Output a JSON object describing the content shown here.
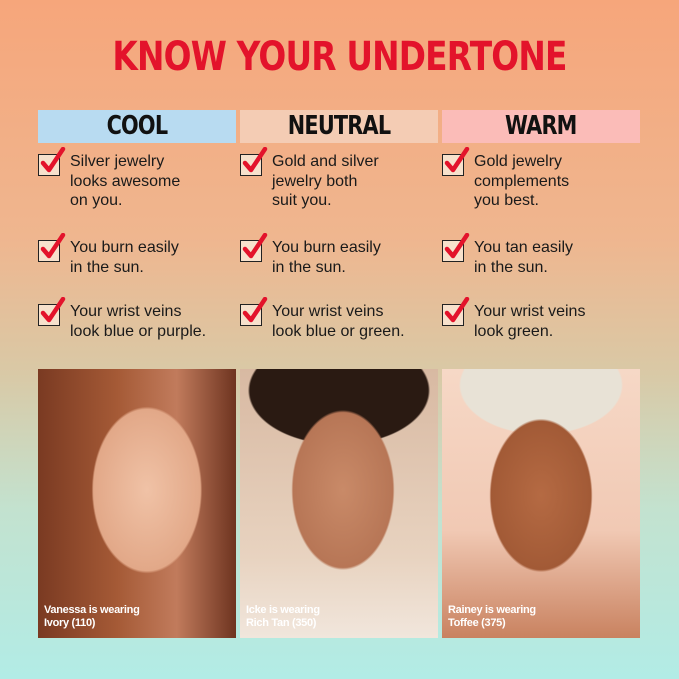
{
  "title": "KNOW YOUR UNDERTONE",
  "colors": {
    "title": "#e3132b",
    "cool": "#b8dbf1",
    "neutral": "#f4ccb4",
    "warm": "#fbbcb8",
    "check": "#e3132b"
  },
  "columns": [
    {
      "label": "COOL",
      "items": [
        "Silver jewelry\nlooks awesome\non you.",
        "You burn easily\nin the sun.",
        "Your wrist veins\nlook blue or purple."
      ],
      "caption": "Vanessa is wearing\nIvory (110)"
    },
    {
      "label": "NEUTRAL",
      "items": [
        "Gold and silver\njewelry both\nsuit you.",
        "You burn easily\nin the sun.",
        "Your wrist veins\nlook blue or green."
      ],
      "caption": "Icke is wearing\nRich Tan (350)"
    },
    {
      "label": "WARM",
      "items": [
        "Gold jewelry\ncomplements\nyou best.",
        "You tan easily\nin the sun.",
        "Your wrist veins\nlook green."
      ],
      "caption": "Rainey is wearing\nToffee (375)"
    }
  ]
}
